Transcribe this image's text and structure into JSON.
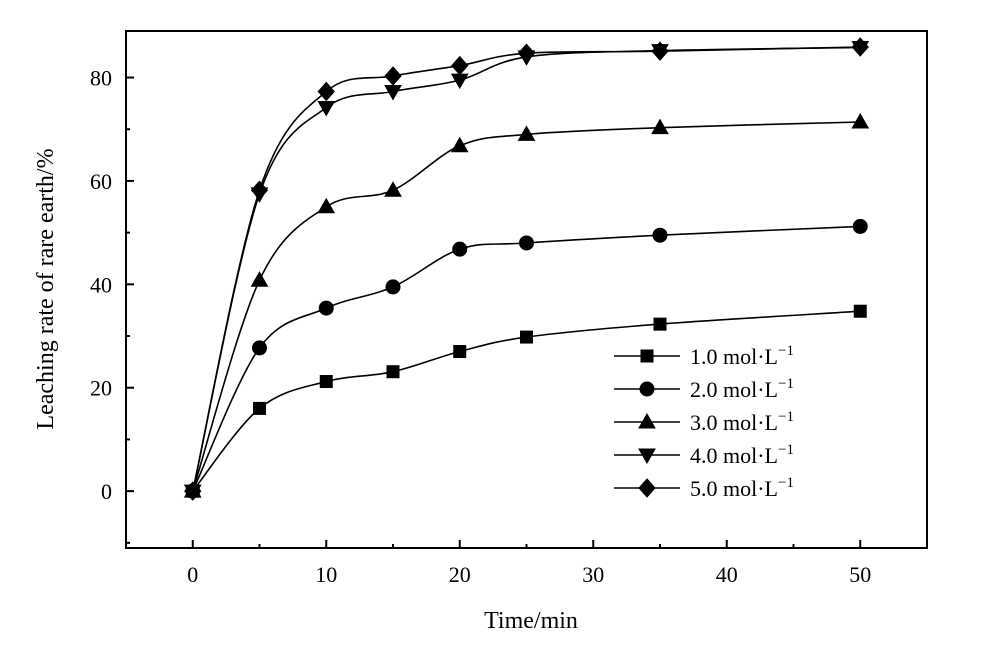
{
  "chart_data": {
    "type": "line",
    "xlabel": "Time/min",
    "ylabel": "Leaching rate of rare earth/%",
    "xlim": [
      -5,
      55
    ],
    "ylim": [
      -11,
      89
    ],
    "x_ticks": [
      0,
      10,
      20,
      30,
      40,
      50
    ],
    "y_ticks": [
      0,
      20,
      40,
      60,
      80
    ],
    "grid": false,
    "legend_position": "bottom-right",
    "x": [
      0,
      5,
      10,
      15,
      20,
      25,
      35,
      50
    ],
    "series": [
      {
        "name": "1.0 mol·L",
        "superscript": "−1",
        "marker": "square",
        "values": [
          0,
          16,
          21.2,
          23.1,
          27,
          29.8,
          32.3,
          34.8
        ]
      },
      {
        "name": "2.0 mol·L",
        "superscript": "−1",
        "marker": "circle",
        "values": [
          0,
          27.7,
          35.4,
          39.5,
          46.8,
          48,
          49.5,
          51.2
        ]
      },
      {
        "name": "3.0 mol·L",
        "superscript": "−1",
        "marker": "triangle-up",
        "values": [
          0,
          40.8,
          55,
          58.2,
          66.8,
          69,
          70.3,
          71.4
        ]
      },
      {
        "name": "4.0 mol·L",
        "superscript": "−1",
        "marker": "triangle-down",
        "values": [
          0,
          57.5,
          74.2,
          77.3,
          79.5,
          84,
          85.2,
          85.8
        ]
      },
      {
        "name": "5.0 mol·L",
        "superscript": "−1",
        "marker": "diamond",
        "values": [
          0,
          58.2,
          77.3,
          80.3,
          82.3,
          84.7,
          85.1,
          85.9
        ]
      }
    ],
    "colors": {
      "line": "#000000",
      "marker": "#000000",
      "background": "#ffffff"
    }
  }
}
